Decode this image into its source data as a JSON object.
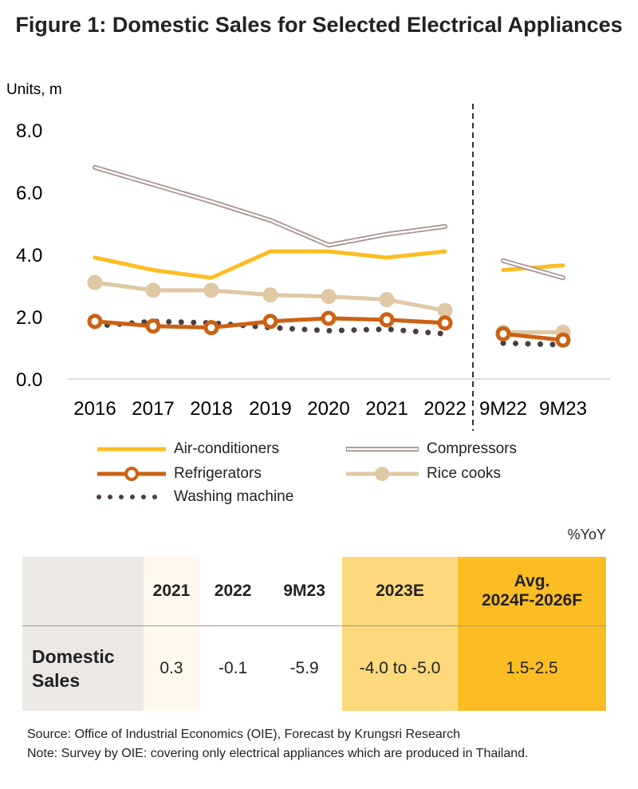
{
  "chart_data": {
    "type": "line",
    "title": "Figure 1: Domestic Sales for Selected Electrical Appliances",
    "ylabel": "Units, m",
    "ylim": [
      0,
      8
    ],
    "yticks": [
      "0.0",
      "2.0",
      "4.0",
      "6.0",
      "8.0"
    ],
    "categories": [
      "2016",
      "2017",
      "2018",
      "2019",
      "2020",
      "2021",
      "2022",
      "9M22",
      "9M23"
    ],
    "series": [
      {
        "name": "Air-conditioners",
        "color": "#fbbd23",
        "values": [
          3.9,
          3.5,
          3.25,
          4.1,
          4.1,
          3.9,
          4.1,
          3.5,
          3.65
        ]
      },
      {
        "name": "Compressors",
        "color": "#a89290",
        "values": [
          6.8,
          6.25,
          5.7,
          5.1,
          4.3,
          4.65,
          4.9,
          3.8,
          3.25
        ]
      },
      {
        "name": "Refrigerators",
        "color": "#cc6114",
        "values": [
          1.85,
          1.7,
          1.65,
          1.85,
          1.95,
          1.9,
          1.8,
          1.45,
          1.25
        ]
      },
      {
        "name": "Rice cooks",
        "color": "#dfc8a4",
        "values": [
          3.1,
          2.85,
          2.85,
          2.7,
          2.65,
          2.55,
          2.2,
          1.5,
          1.5
        ]
      },
      {
        "name": "Washing machine",
        "color": "#4a3f3f",
        "values": [
          1.7,
          1.85,
          1.8,
          1.65,
          1.55,
          1.6,
          1.45,
          1.15,
          1.1
        ]
      }
    ]
  },
  "table": {
    "unit": "%YoY",
    "headers": [
      "2021",
      "2022",
      "9M23",
      "2023E",
      "Avg.",
      "2024F-2026F"
    ],
    "row_label_1": "Domestic",
    "row_label_2": "Sales",
    "values": [
      "0.3",
      "-0.1",
      "-5.9",
      "-4.0 to -5.0",
      "1.5-2.5"
    ]
  },
  "notes": {
    "source": "Source: Office of Industrial Economics (OIE), Forecast by Krungsri Research",
    "note": "Note: Survey by OIE: covering only electrical appliances which are produced in Thailand."
  }
}
